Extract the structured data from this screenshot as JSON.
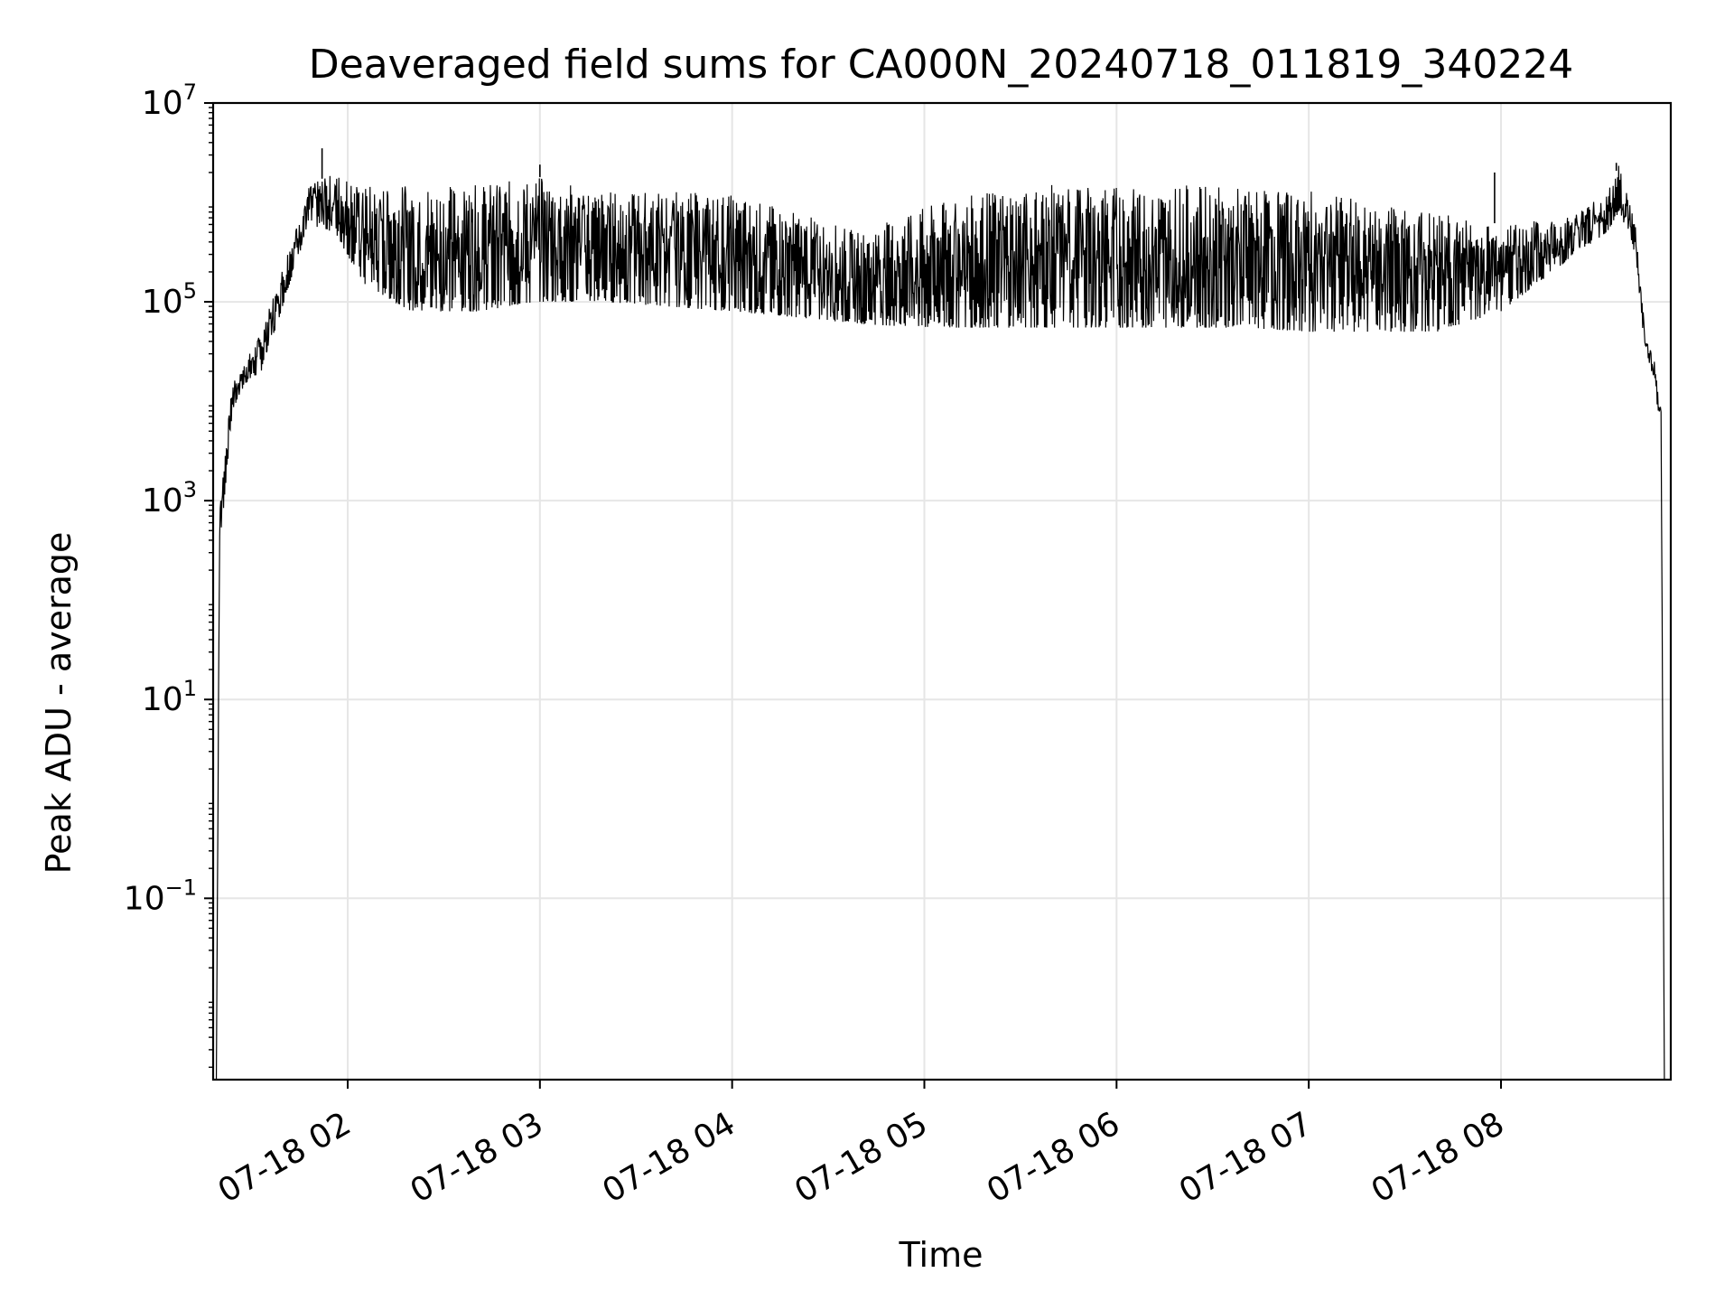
{
  "chart_data": {
    "type": "line",
    "title": "Deaveraged field sums for CA000N_20240718_011819_340224",
    "xlabel": "Time",
    "ylabel": "Peak ADU - average",
    "yscale": "log",
    "xlim": [
      "2024-07-18 01:18",
      "2024-07-18 08:53"
    ],
    "ylim": [
      0.0015,
      10000000
    ],
    "grid": true,
    "line_color": "#000000",
    "x_ticks": [
      "07-18 02",
      "07-18 03",
      "07-18 04",
      "07-18 05",
      "07-18 06",
      "07-18 07",
      "07-18 08"
    ],
    "y_ticks": [
      {
        "base": "10",
        "exp": "7",
        "value": 10000000
      },
      {
        "base": "10",
        "exp": "5",
        "value": 100000
      },
      {
        "base": "10",
        "exp": "3",
        "value": 1000
      },
      {
        "base": "10",
        "exp": "1",
        "value": 10
      },
      {
        "base": "10",
        "exp": "−1",
        "value": 0.1
      }
    ],
    "envelope": [
      {
        "t": "01:19",
        "low": 0.0015,
        "high": 0.0015
      },
      {
        "t": "01:20",
        "low": 300,
        "high": 1000
      },
      {
        "t": "01:24",
        "low": 8000,
        "high": 15000
      },
      {
        "t": "01:28",
        "low": 15000,
        "high": 25000
      },
      {
        "t": "01:33",
        "low": 20000,
        "high": 50000
      },
      {
        "t": "01:38",
        "low": 60000,
        "high": 150000
      },
      {
        "t": "01:43",
        "low": 200000,
        "high": 500000
      },
      {
        "t": "01:48",
        "low": 600000,
        "high": 1500000
      },
      {
        "t": "01:56",
        "low": 500000,
        "high": 2000000
      },
      {
        "t": "02:05",
        "low": 150000,
        "high": 1500000
      },
      {
        "t": "02:20",
        "low": 80000,
        "high": 1500000
      },
      {
        "t": "02:40",
        "low": 80000,
        "high": 1500000
      },
      {
        "t": "03:00",
        "low": 100000,
        "high": 1800000
      },
      {
        "t": "03:20",
        "low": 100000,
        "high": 1300000
      },
      {
        "t": "03:40",
        "low": 90000,
        "high": 1300000
      },
      {
        "t": "04:00",
        "low": 80000,
        "high": 1200000
      },
      {
        "t": "04:20",
        "low": 70000,
        "high": 800000
      },
      {
        "t": "04:40",
        "low": 60000,
        "high": 500000
      },
      {
        "t": "05:00",
        "low": 55000,
        "high": 900000
      },
      {
        "t": "05:20",
        "low": 55000,
        "high": 1300000
      },
      {
        "t": "05:40",
        "low": 55000,
        "high": 1500000
      },
      {
        "t": "06:00",
        "low": 55000,
        "high": 1500000
      },
      {
        "t": "06:20",
        "low": 55000,
        "high": 1500000
      },
      {
        "t": "06:40",
        "low": 55000,
        "high": 1400000
      },
      {
        "t": "07:00",
        "low": 50000,
        "high": 1300000
      },
      {
        "t": "07:20",
        "low": 50000,
        "high": 1000000
      },
      {
        "t": "07:40",
        "low": 50000,
        "high": 800000
      },
      {
        "t": "08:00",
        "low": 80000,
        "high": 600000
      },
      {
        "t": "08:20",
        "low": 250000,
        "high": 700000
      },
      {
        "t": "08:33",
        "low": 500000,
        "high": 1200000
      },
      {
        "t": "08:37",
        "low": 800000,
        "high": 2500000
      },
      {
        "t": "08:42",
        "low": 300000,
        "high": 600000
      },
      {
        "t": "08:45",
        "low": 30000,
        "high": 50000
      },
      {
        "t": "08:48",
        "low": 15000,
        "high": 25000
      },
      {
        "t": "08:50",
        "low": 4000,
        "high": 8000
      },
      {
        "t": "08:51",
        "low": 0.0015,
        "high": 0.0015
      }
    ],
    "spikes": [
      {
        "t": "01:52",
        "value": 3500000
      },
      {
        "t": "03:00",
        "value": 2400000
      },
      {
        "t": "07:58",
        "value": 2000000
      },
      {
        "t": "08:36",
        "value": 2500000
      }
    ]
  }
}
